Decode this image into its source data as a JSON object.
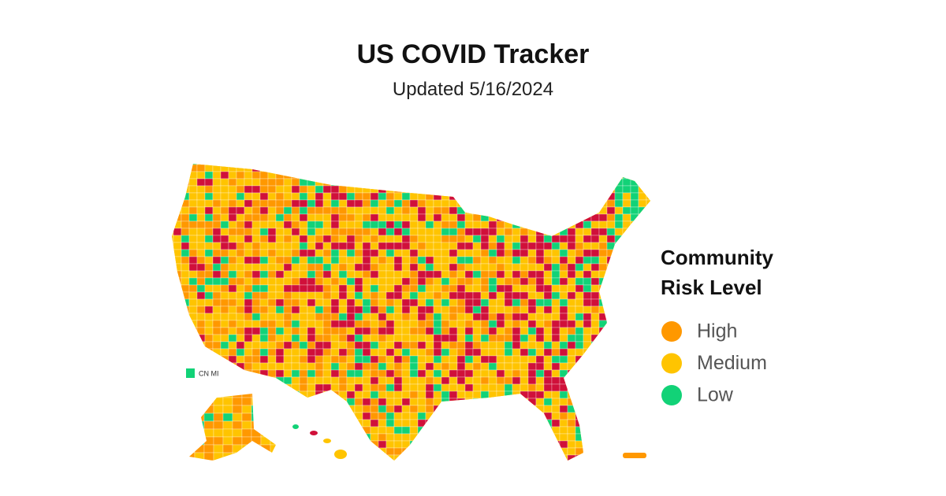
{
  "header": {
    "title": "US COVID Tracker",
    "subtitle": "Updated 5/16/2024"
  },
  "legend": {
    "title": "Community Risk Level",
    "items": [
      {
        "label": "High",
        "color": "#ff9800"
      },
      {
        "label": "Medium",
        "color": "#ffc400"
      },
      {
        "label": "Low",
        "color": "#12d277"
      }
    ]
  },
  "map": {
    "territory_label": "CN MI"
  }
}
